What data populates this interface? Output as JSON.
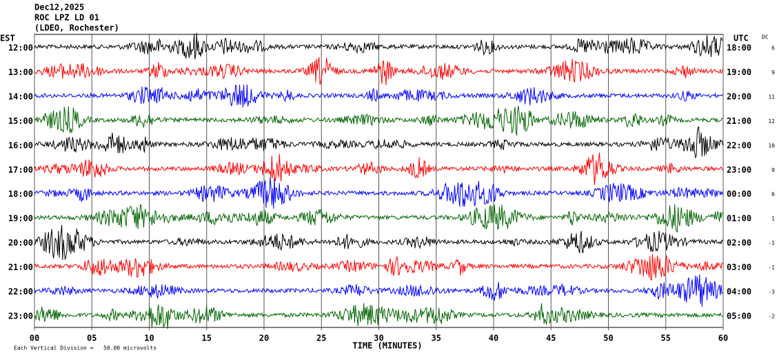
{
  "header": {
    "date": "Dec12,2025",
    "station": "ROC LPZ LD 01",
    "network": "(LDEO, Rochester)"
  },
  "plot": {
    "left_label": "EST",
    "right_label": "UTC",
    "dc_label": "DC",
    "x_label": "TIME (MINUTES)",
    "footer": "Each Vertical Division =   50.00 microvolts",
    "xlim": [
      0,
      60
    ],
    "xticks": [
      {
        "value": 0,
        "label": "00"
      },
      {
        "value": 5,
        "label": "05"
      },
      10,
      15,
      20,
      25,
      30,
      35,
      40,
      45,
      50,
      55,
      60
    ],
    "rows": [
      {
        "est": "12:00",
        "utc": "18:00",
        "dc": 6,
        "color": "#000000"
      },
      {
        "est": "13:00",
        "utc": "19:00",
        "dc": 9,
        "color": "#ff0000"
      },
      {
        "est": "14:00",
        "utc": "20:00",
        "dc": 11,
        "color": "#0000ff"
      },
      {
        "est": "15:00",
        "utc": "21:00",
        "dc": 12,
        "color": "#006400"
      },
      {
        "est": "16:00",
        "utc": "22:00",
        "dc": 10,
        "color": "#000000"
      },
      {
        "est": "17:00",
        "utc": "23:00",
        "dc": 9,
        "color": "#ff0000"
      },
      {
        "est": "18:00",
        "utc": "00:00",
        "dc": 6,
        "color": "#0000ff"
      },
      {
        "est": "19:00",
        "utc": "01:00",
        "dc": 1,
        "color": "#006400"
      },
      {
        "est": "20:00",
        "utc": "02:00",
        "dc": -1,
        "color": "#000000"
      },
      {
        "est": "21:00",
        "utc": "03:00",
        "dc": -1,
        "color": "#ff0000"
      },
      {
        "est": "22:00",
        "utc": "04:00",
        "dc": -3,
        "color": "#0000ff"
      },
      {
        "est": "23:00",
        "utc": "05:00",
        "dc": -2,
        "color": "#006400"
      }
    ]
  }
}
